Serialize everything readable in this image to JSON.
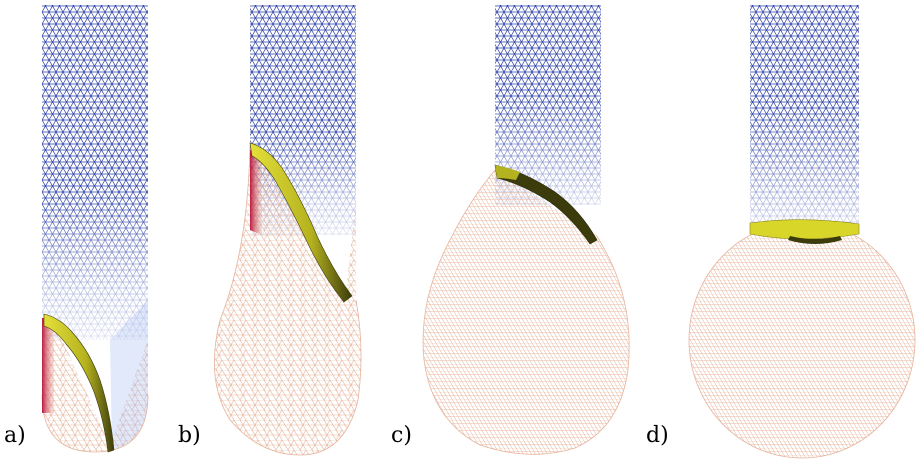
{
  "panels": [
    {
      "label": "a)"
    },
    {
      "label": "b)"
    },
    {
      "label": "c)"
    },
    {
      "label": "d)"
    }
  ],
  "colors": {
    "tube_mesh_top": "#2b3fa6",
    "tube_mesh_fade": "#a8bff0",
    "bulge_mesh": "#e8b8a3",
    "red_edge": "#b80f36",
    "band_light": "#d9d62a",
    "band_dark": "#3b3b0c"
  }
}
